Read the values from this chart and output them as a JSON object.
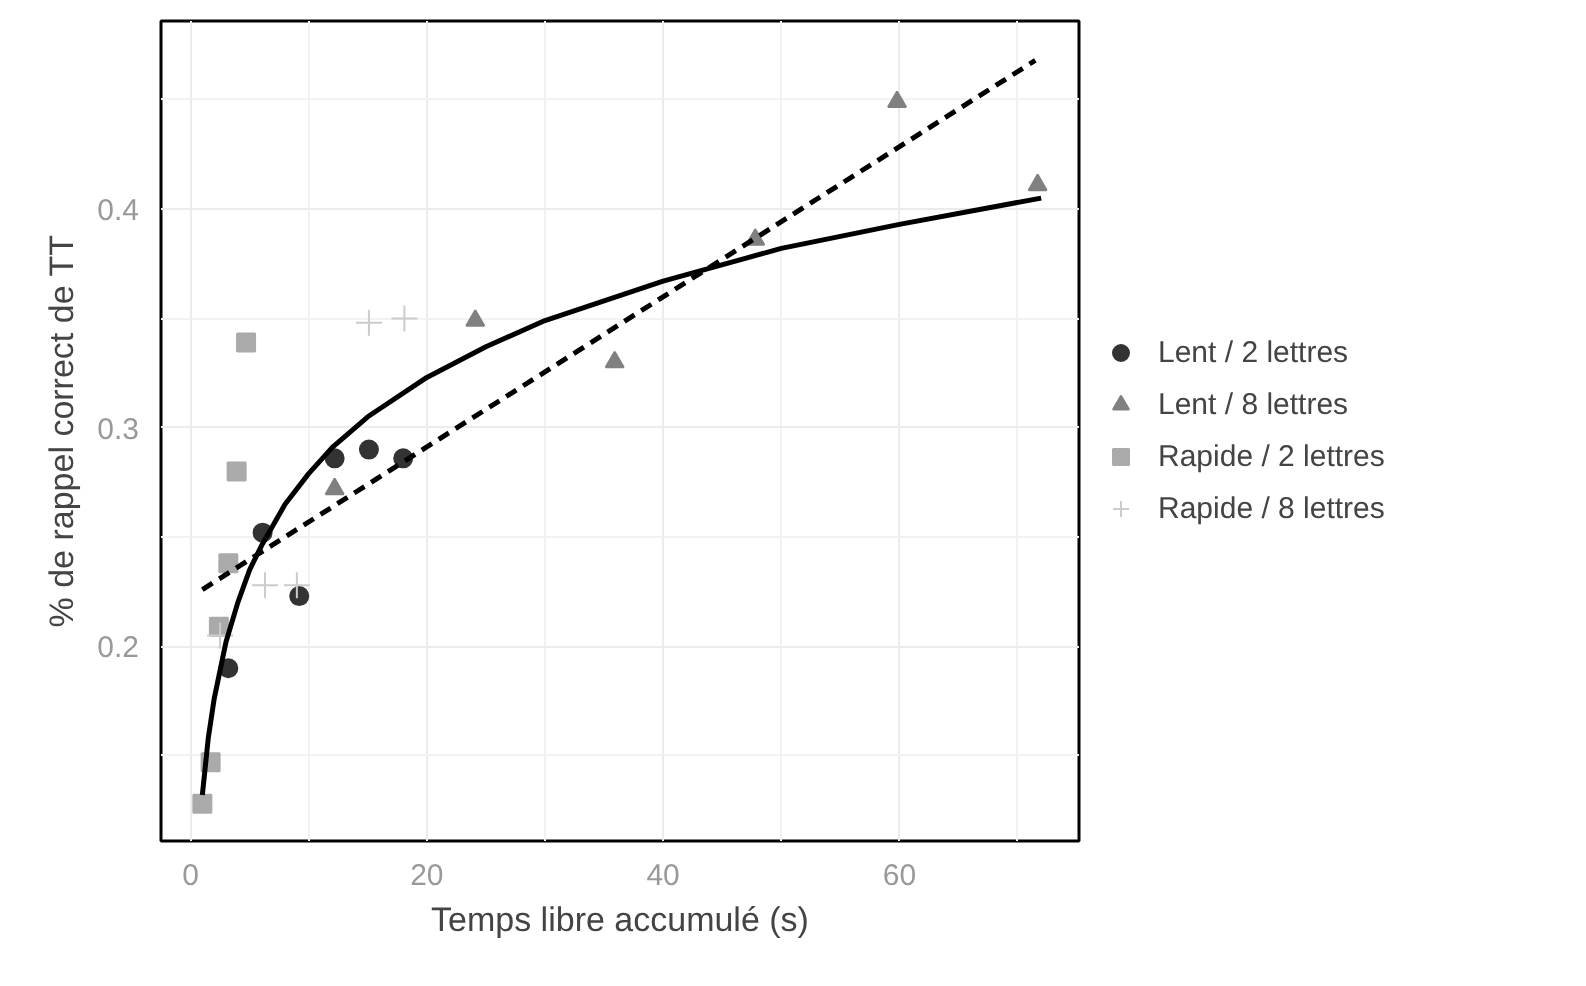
{
  "chart_data": {
    "type": "scatter",
    "xlabel": "Temps libre accumulé (s)",
    "ylabel": "% de rappel correct de TT",
    "xlim": [
      -2.5,
      75.2
    ],
    "ylim": [
      0.111,
      0.486
    ],
    "xticks": [
      0,
      20,
      40,
      60
    ],
    "yticks": [
      0.2,
      0.3,
      0.4
    ],
    "grid": true,
    "legend": "right",
    "series": [
      {
        "name": "Lent / 2 lettres",
        "color": "#333333",
        "marker": "circle",
        "x": [
          3.2,
          6.1,
          9.2,
          12.2,
          15.1,
          18.0
        ],
        "values": [
          0.19,
          0.252,
          0.223,
          0.286,
          0.29,
          0.286
        ]
      },
      {
        "name": "Lent / 8 lettres",
        "color": "#808080",
        "marker": "triangle",
        "x": [
          12.2,
          24.1,
          35.9,
          47.8,
          59.8,
          71.7
        ],
        "values": [
          0.272,
          0.349,
          0.33,
          0.386,
          0.449,
          0.411
        ]
      },
      {
        "name": "Rapide / 2 lettres",
        "color": "#aaaaaa",
        "marker": "square",
        "x": [
          1.0,
          1.7,
          2.4,
          3.2,
          3.9,
          4.7
        ],
        "values": [
          0.128,
          0.147,
          0.209,
          0.238,
          0.28,
          0.339
        ]
      },
      {
        "name": "Rapide / 8 lettres",
        "color": "#cccccc",
        "marker": "cross",
        "x": [
          2.5,
          6.3,
          9.0,
          15.1,
          18.1
        ],
        "values": [
          0.205,
          0.228,
          0.228,
          0.348,
          0.35
        ]
      },
      {
        "type": "line",
        "color": "#000000",
        "line_style": "solid",
        "x": [
          1,
          1.5,
          2,
          3,
          4,
          5,
          6,
          8,
          10,
          12,
          15,
          20,
          25,
          30,
          40,
          50,
          60,
          72
        ],
        "values": [
          0.132,
          0.158,
          0.176,
          0.202,
          0.22,
          0.235,
          0.246,
          0.265,
          0.279,
          0.291,
          0.305,
          0.323,
          0.337,
          0.349,
          0.367,
          0.382,
          0.393,
          0.405
        ]
      },
      {
        "type": "line",
        "color": "#000000",
        "line_style": "dashed",
        "x": [
          1.0,
          71.5
        ],
        "values": [
          0.226,
          0.468
        ]
      }
    ]
  }
}
